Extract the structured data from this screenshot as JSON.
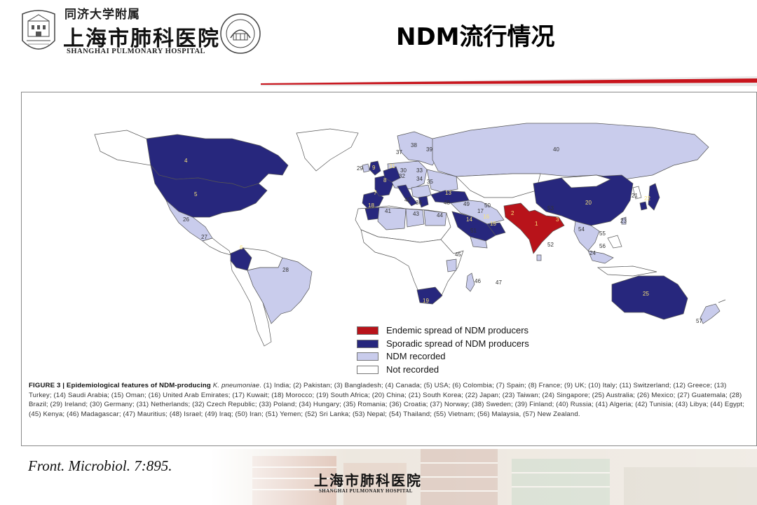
{
  "header": {
    "hospital_name_cn_small": "同济大学附属",
    "hospital_name_cn": "上海市肺科医院",
    "hospital_name_en": "SHANGHAI PULMONARY HOSPITAL",
    "title": "NDM流行情况"
  },
  "colors": {
    "endemic": "#b8131a",
    "sporadic": "#27277d",
    "recorded": "#c9ccec",
    "not_recorded": "#ffffff",
    "accent_red": "#c8141c"
  },
  "legend": [
    {
      "label": "Endemic spread of NDM producers",
      "color": "#b8131a"
    },
    {
      "label": "Sporadic spread of NDM producers",
      "color": "#27277d"
    },
    {
      "label": "NDM recorded",
      "color": "#c9ccec"
    },
    {
      "label": "Not recorded",
      "color": "#ffffff"
    }
  ],
  "caption": {
    "figure_label": "FIGURE 3 | Epidemiological features of NDM-producing ",
    "organism": "K. pneumoniae",
    "body": ". (1) India; (2) Pakistan; (3) Bangladesh; (4) Canada; (5) USA; (6) Colombia; (7) Spain; (8) France; (9) UK; (10) Italy; (11) Switzerland; (12) Greece; (13) Turkey; (14) Saudi Arabia; (15) Oman; (16) United Arab Emirates; (17) Kuwait; (18) Morocco; (19) South Africa; (20) China; (21) South Korea; (22) Japan; (23) Taiwan; (24) Singapore; (25) Australia; (26) Mexico; (27) Guatemala; (28) Brazil; (29) Ireland; (30) Germany; (31) Netherlands; (32) Czech Republic; (33) Poland; (34) Hungary; (35) Romania; (36) Croatia; (37) Norway; (38) Sweden; (39) Finland; (40) Russia; (41) Algeria; (42) Tunisia; (43) Libya; (44) Egypt; (45) Kenya; (46) Madagascar; (47) Mauritius; (48) Israel; (49) Iraq; (50) Iran; (51) Yemen; (52) Sri Lanka; (53) Nepal; (54) Thailand; (55) Vietnam; (56) Malaysia, (57) New Zealand."
  },
  "citation": "Front. Microbiol. 7:895.",
  "footer": {
    "hospital_name_cn": "上海市肺科医院",
    "hospital_name_en": "SHANGHAI PULMONARY HOSPITAL"
  }
}
